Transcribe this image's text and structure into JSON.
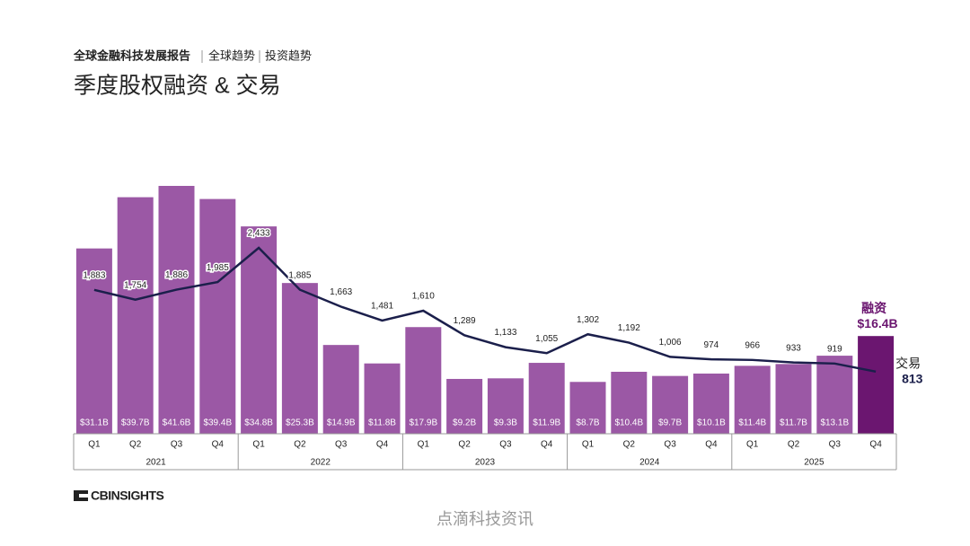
{
  "chart_data": {
    "type": "bar-line",
    "header": [
      "全球金融科技发展报告",
      "全球趋势",
      "投资趋势"
    ],
    "title": "季度股权融资 & 交易",
    "categories": [
      "Q1",
      "Q2",
      "Q3",
      "Q4",
      "Q1",
      "Q2",
      "Q3",
      "Q4",
      "Q1",
      "Q2",
      "Q3",
      "Q4",
      "Q1",
      "Q2",
      "Q3",
      "Q4",
      "Q1",
      "Q2",
      "Q3",
      "Q4"
    ],
    "years": [
      "2021",
      "2022",
      "2023",
      "2024",
      "2025"
    ],
    "series": [
      {
        "name": "融资",
        "color": "#9b58a5",
        "last_color": "#6b1670",
        "values": [
          31.1,
          39.7,
          41.6,
          39.4,
          34.8,
          25.3,
          14.9,
          11.8,
          17.9,
          9.2,
          9.3,
          11.9,
          8.7,
          10.4,
          9.7,
          10.1,
          11.4,
          11.7,
          13.1,
          16.4
        ],
        "value_labels": [
          "$31.1B",
          "$39.7B",
          "$41.6B",
          "$39.4B",
          "$34.8B",
          "$25.3B",
          "$14.9B",
          "$11.8B",
          "$17.9B",
          "$9.2B",
          "$9.3B",
          "$11.9B",
          "$8.7B",
          "$10.4B",
          "$9.7B",
          "$10.1B",
          "$11.4B",
          "$11.7B",
          "$13.1B",
          "$16.4B"
        ]
      },
      {
        "name": "交易",
        "color": "#1b1f4b",
        "axis": "y2",
        "values": [
          1883,
          1754,
          1886,
          1985,
          2433,
          1885,
          1663,
          1481,
          1610,
          1289,
          1133,
          1055,
          1302,
          1192,
          1006,
          974,
          966,
          933,
          919,
          813
        ],
        "value_labels": [
          "1,883",
          "1,754",
          "1,886",
          "1,985",
          "2,433",
          "1,885",
          "1,663",
          "1,481",
          "1,610",
          "1,289",
          "1,133",
          "1,055",
          "1,302",
          "1,192",
          "1,006",
          "974",
          "966",
          "933",
          "919",
          "813"
        ]
      }
    ],
    "logo": "CBINSIGHTS",
    "watermark": "点滴科技资讯"
  }
}
